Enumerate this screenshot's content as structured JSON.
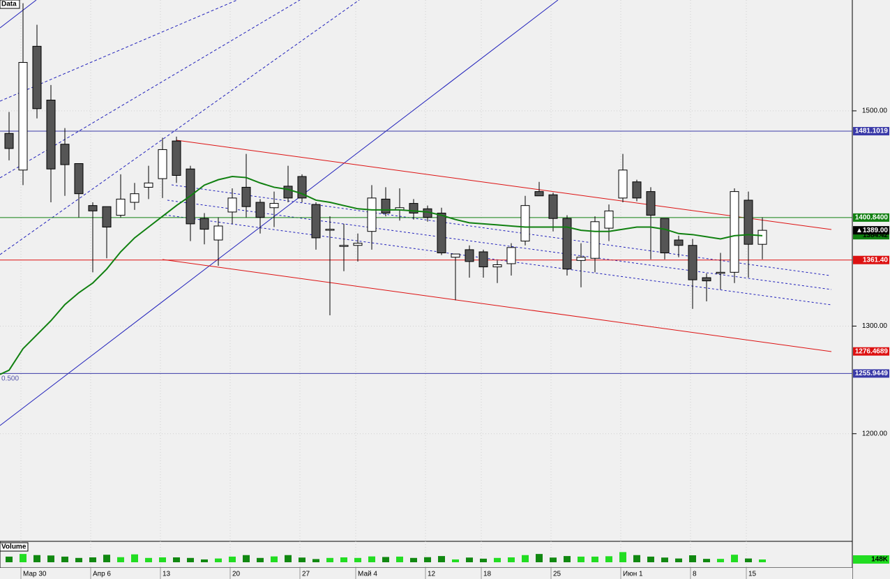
{
  "chart_data": {
    "type": "candlestick",
    "panel_label": "Data",
    "volume_label": "Volume",
    "categories": [
      null,
      "Мар 30",
      null,
      null,
      null,
      null,
      "Апр 6",
      null,
      null,
      null,
      null,
      "13",
      null,
      null,
      null,
      null,
      "20",
      null,
      null,
      null,
      null,
      "27",
      null,
      null,
      null,
      "Май 4",
      null,
      null,
      null,
      null,
      "12",
      null,
      null,
      null,
      "18",
      null,
      null,
      null,
      null,
      "25",
      null,
      null,
      null,
      null,
      "Июн 1",
      null,
      null,
      null,
      null,
      "8",
      null,
      null,
      null,
      "15",
      null
    ],
    "open": [
      1479,
      1445,
      1560,
      1510,
      1469,
      1451,
      1412,
      1411,
      1403,
      1415,
      1429,
      1437,
      1472,
      1446,
      1400,
      1380,
      1406,
      1429,
      1415,
      1410,
      1430,
      1439,
      1413,
      1390,
      1375,
      1375,
      1388,
      1418,
      1408,
      1414,
      1409,
      1405,
      1364,
      1371,
      1369,
      1355,
      1358,
      1379,
      1425,
      1422,
      1400,
      1361,
      1363,
      1391,
      1419,
      1434,
      1425,
      1400,
      1380,
      1375,
      1345,
      1349,
      1350,
      1417,
      1376
    ],
    "high": [
      1499,
      1600,
      1580,
      1524,
      1484,
      1451,
      1415,
      1411,
      1441,
      1433,
      1449,
      1475,
      1476,
      1449,
      1405,
      1401,
      1428,
      1460,
      1418,
      1425,
      1449,
      1441,
      1415,
      1402,
      1395,
      1386,
      1431,
      1429,
      1428,
      1418,
      1412,
      1410,
      1367,
      1375,
      1371,
      1361,
      1377,
      1421,
      1434,
      1424,
      1403,
      1377,
      1402,
      1413,
      1460,
      1436,
      1429,
      1400,
      1384,
      1381,
      1349,
      1368,
      1428,
      1425,
      1401
    ],
    "low": [
      1454,
      1431,
      1493,
      1415,
      1421,
      1401,
      1350,
      1363,
      1401,
      1408,
      1418,
      1419,
      1433,
      1379,
      1376,
      1356,
      1395,
      1401,
      1386,
      1392,
      1415,
      1415,
      1371,
      1310,
      1351,
      1360,
      1371,
      1402,
      1398,
      1399,
      1397,
      1366,
      1324,
      1345,
      1345,
      1340,
      1347,
      1375,
      1421,
      1388,
      1347,
      1336,
      1350,
      1379,
      1415,
      1416,
      1362,
      1362,
      1364,
      1316,
      1323,
      1334,
      1340,
      1345,
      1362
    ],
    "close": [
      1465,
      1545,
      1502,
      1446,
      1450,
      1423,
      1407,
      1392,
      1418,
      1423,
      1433,
      1464,
      1440,
      1395,
      1390,
      1393,
      1419,
      1411,
      1401,
      1414,
      1419,
      1419,
      1382,
      1390,
      1375,
      1377,
      1419,
      1405,
      1410,
      1405,
      1401,
      1368,
      1367,
      1360,
      1355,
      1357,
      1373,
      1412,
      1421,
      1400,
      1353,
      1364,
      1397,
      1407,
      1445,
      1419,
      1403,
      1368,
      1375,
      1343,
      1342,
      1350,
      1425,
      1376,
      1389
    ],
    "up_color": "#ffffff",
    "down_color": "#555555",
    "ma": {
      "color": "#108010",
      "values": [
        1259,
        1279,
        1292,
        1305,
        1320,
        1331,
        1340,
        1353,
        1369,
        1382,
        1392,
        1402,
        1412,
        1421,
        1431,
        1436,
        1439,
        1438,
        1433,
        1429,
        1427,
        1423,
        1417,
        1415,
        1412,
        1409,
        1408,
        1408,
        1408,
        1407,
        1406,
        1403,
        1399,
        1396,
        1395,
        1394,
        1393,
        1392,
        1392,
        1392,
        1392,
        1389,
        1388,
        1388,
        1390,
        1392,
        1392,
        1390,
        1386,
        1385,
        1383,
        1381,
        1384,
        1385,
        1384
      ]
    },
    "volume": {
      "values": [
        300,
        440,
        380,
        360,
        300,
        230,
        260,
        400,
        270,
        420,
        230,
        260,
        260,
        230,
        150,
        200,
        300,
        380,
        230,
        310,
        380,
        250,
        170,
        230,
        260,
        230,
        310,
        280,
        300,
        230,
        270,
        330,
        150,
        250,
        190,
        230,
        260,
        380,
        440,
        250,
        330,
        300,
        300,
        320,
        540,
        380,
        300,
        250,
        200,
        370,
        180,
        180,
        400,
        200,
        148
      ],
      "ylim": [
        0,
        1000
      ],
      "up_color": "#22dd22",
      "down_color": "#118811",
      "last_label": {
        "value": 148,
        "label": "148K"
      }
    },
    "ylim": [
      1100,
      1603
    ],
    "yticks": [
      {
        "value": 1200,
        "label": "1200.00"
      },
      {
        "value": 1300,
        "label": "1300.00"
      },
      {
        "value": 1500,
        "label": "1500.00"
      }
    ],
    "levels": [
      {
        "value": 1481.1019,
        "label": "1481.1019",
        "color": "#3a3aa8"
      },
      {
        "value": 1400.84,
        "label": "1400.8400",
        "color": "#108010"
      },
      {
        "value": 1361.4,
        "label": "1361.40",
        "color": "#dd1111"
      },
      {
        "value": 1255.9449,
        "label": "1255.9449",
        "color": "#3a3aa8"
      }
    ],
    "channel_end": {
      "value": 1276.4689,
      "label": "1276.4689",
      "color": "#dd1111"
    },
    "ma_label": {
      "value": 1384.42,
      "label": "1384.42"
    },
    "price_label": {
      "marker": "▲",
      "value": 1389,
      "label": "1389.00"
    },
    "fib_label": "0.500"
  }
}
